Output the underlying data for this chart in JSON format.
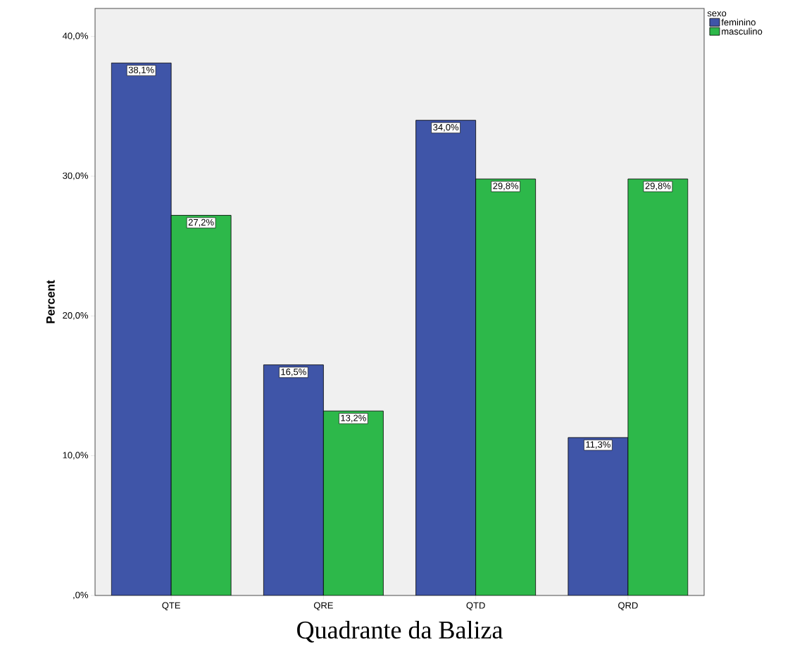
{
  "chart_data": {
    "type": "bar",
    "xlabel": "Quadrante da Baliza",
    "ylabel": "Percent",
    "legend_title": "sexo",
    "legend": "top right",
    "categories": [
      "QTE",
      "QRE",
      "QTD",
      "QRD"
    ],
    "series": [
      {
        "name": "feminino",
        "color": "#3f55a8",
        "values": [
          38.1,
          16.5,
          34.0,
          11.3
        ],
        "value_labels": [
          "38,1%",
          "16,5%",
          "34,0%",
          "11,3%"
        ]
      },
      {
        "name": "masculino",
        "color": "#2db84a",
        "values": [
          27.2,
          13.2,
          29.8,
          29.8
        ],
        "value_labels": [
          "27,2%",
          "13,2%",
          "29,8%",
          "29,8%"
        ]
      }
    ],
    "ylim": [
      0,
      42
    ],
    "yticks": [
      {
        "value": 0,
        "label": ",0%"
      },
      {
        "value": 10,
        "label": "10,0%"
      },
      {
        "value": 20,
        "label": "20,0%"
      },
      {
        "value": 30,
        "label": "30,0%"
      },
      {
        "value": 40,
        "label": "40,0%"
      }
    ]
  }
}
